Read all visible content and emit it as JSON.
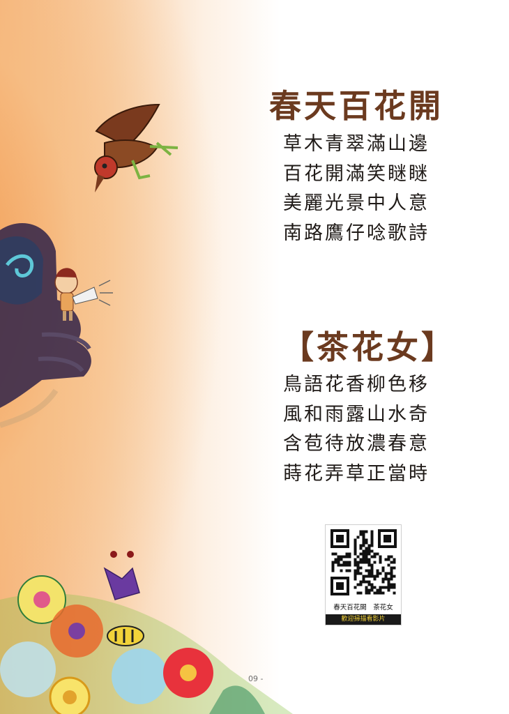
{
  "song1": {
    "title": "春天百花開",
    "lines": [
      "草木青翠滿山邊",
      "百花開滿笑瞇瞇",
      "美麗光景中人意",
      "南路鷹仔唸歌詩"
    ]
  },
  "song2": {
    "bracket_open": "【",
    "title": "茶花女",
    "bracket_close": "】",
    "lines": [
      "鳥語花香柳色移",
      "風和雨露山水奇",
      "含苞待放濃春意",
      "蒔花弄草正當時"
    ]
  },
  "qr": {
    "caption": "春天百花開　茶花女",
    "banner": "歡迎掃描看影片"
  },
  "page_number": "09 -"
}
